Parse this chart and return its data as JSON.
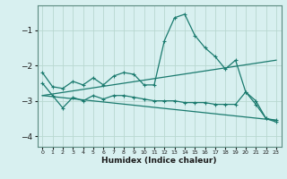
{
  "xlabel": "Humidex (Indice chaleur)",
  "ylabel": "",
  "bg_color": "#d8f0f0",
  "grid_color": "#b8d8d0",
  "line_color": "#1a7a6e",
  "xlim": [
    -0.5,
    23.5
  ],
  "ylim": [
    -4.3,
    -0.3
  ],
  "yticks": [
    -4,
    -3,
    -2,
    -1
  ],
  "xticks": [
    0,
    1,
    2,
    3,
    4,
    5,
    6,
    7,
    8,
    9,
    10,
    11,
    12,
    13,
    14,
    15,
    16,
    17,
    18,
    19,
    20,
    21,
    22,
    23
  ],
  "main_x": [
    0,
    1,
    2,
    3,
    4,
    5,
    6,
    7,
    8,
    9,
    10,
    11,
    12,
    13,
    14,
    15,
    16,
    17,
    18,
    19,
    20,
    21,
    22,
    23
  ],
  "main_y": [
    -2.2,
    -2.6,
    -2.65,
    -2.45,
    -2.55,
    -2.35,
    -2.55,
    -2.3,
    -2.2,
    -2.25,
    -2.55,
    -2.55,
    -1.3,
    -0.65,
    -0.55,
    -1.15,
    -1.5,
    -1.75,
    -2.1,
    -1.85,
    -2.75,
    -3.0,
    -3.5,
    -3.55
  ],
  "line2_x": [
    0,
    1,
    2,
    3,
    4,
    5,
    6,
    7,
    8,
    9,
    10,
    11,
    12,
    13,
    14,
    15,
    16,
    17,
    18,
    19,
    20,
    21,
    22,
    23
  ],
  "line2_y": [
    -2.5,
    -2.85,
    -3.2,
    -2.9,
    -3.0,
    -2.85,
    -2.95,
    -2.85,
    -2.85,
    -2.9,
    -2.95,
    -3.0,
    -3.0,
    -3.0,
    -3.05,
    -3.05,
    -3.05,
    -3.1,
    -3.1,
    -3.1,
    -2.75,
    -3.1,
    -3.5,
    -3.6
  ],
  "regline1_x": [
    0,
    23
  ],
  "regline1_y": [
    -2.85,
    -1.85
  ],
  "regline2_x": [
    0,
    23
  ],
  "regline2_y": [
    -2.85,
    -3.55
  ]
}
